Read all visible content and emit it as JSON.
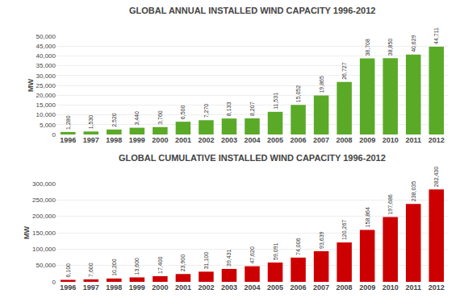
{
  "chart_data": [
    {
      "type": "bar",
      "title": "GLOBAL ANNUAL INSTALLED WIND CAPACITY 1996-2012",
      "ylabel": "MW",
      "categories": [
        "1996",
        "1997",
        "1998",
        "1999",
        "2000",
        "2001",
        "2002",
        "2003",
        "2004",
        "2005",
        "2006",
        "2007",
        "2008",
        "2009",
        "2010",
        "2011",
        "2012"
      ],
      "values": [
        1280,
        1530,
        2520,
        3440,
        3760,
        6500,
        7270,
        8133,
        8207,
        11531,
        15052,
        19865,
        26727,
        38708,
        38850,
        40629,
        44711
      ],
      "value_labels": [
        "1,280",
        "1,530",
        "2,520",
        "3,440",
        "3,760",
        "6,500",
        "7,270",
        "8,133",
        "8,207",
        "11,531",
        "15,052",
        "19,865",
        "26,727",
        "38,708",
        "38,850",
        "40,629",
        "44,711"
      ],
      "color": "#5aaa28",
      "ylim": [
        0,
        50000
      ],
      "yticks": [
        0,
        {
          "value": 5000,
          "label": "5,000"
        },
        {
          "value": 10000,
          "label": "10,000"
        },
        {
          "value": 15000,
          "label": "15,000"
        },
        {
          "value": 20000,
          "label": "20,000"
        },
        {
          "value": 25000,
          "label": "25,000"
        },
        {
          "value": 30000,
          "label": "30,000"
        },
        {
          "value": 35000,
          "label": "35,000"
        },
        {
          "value": 40000,
          "label": "40,000"
        },
        {
          "value": 45000,
          "label": "45,000"
        },
        {
          "value": 50000,
          "label": "50,000"
        }
      ],
      "grid": true,
      "data_labels": true
    },
    {
      "type": "bar",
      "title": "GLOBAL CUMULATIVE INSTALLED WIND CAPACITY 1996-2012",
      "ylabel": "MW",
      "categories": [
        "1996",
        "1997",
        "1998",
        "1999",
        "2000",
        "2001",
        "2002",
        "2003",
        "2004",
        "2005",
        "2006",
        "2007",
        "2008",
        "2009",
        "2010",
        "2011",
        "2012"
      ],
      "values": [
        6100,
        7600,
        10200,
        13600,
        17400,
        23900,
        31100,
        39431,
        47620,
        59091,
        74006,
        93639,
        120267,
        158864,
        197686,
        238035,
        282430
      ],
      "value_labels": [
        "6,100",
        "7,600",
        "10,200",
        "13,600",
        "17,400",
        "23,900",
        "31,100",
        "39,431",
        "47,620",
        "59,091",
        "74,006",
        "93,639",
        "120,267",
        "158,864",
        "197,686",
        "238,035",
        "282,430"
      ],
      "color": "#cc0000",
      "ylim": [
        0,
        300000
      ],
      "yticks": [
        0,
        {
          "value": 50000,
          "label": "50,000"
        },
        {
          "value": 100000,
          "label": "100,000"
        },
        {
          "value": 150000,
          "label": "150,000"
        },
        {
          "value": 200000,
          "label": "200,000"
        },
        {
          "value": 250000,
          "label": "250,000"
        },
        {
          "value": 300000,
          "label": "300,000"
        }
      ],
      "grid": true,
      "data_labels": true
    }
  ]
}
